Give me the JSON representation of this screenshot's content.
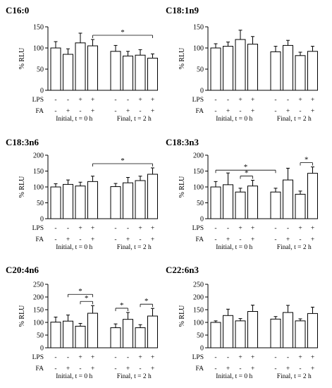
{
  "figure": {
    "ylabel": "% RLU",
    "row_labels": [
      "LPS",
      "FA"
    ],
    "lps_pattern": [
      "-",
      "-",
      "+",
      "+"
    ],
    "fa_pattern": [
      "-",
      "+",
      "-",
      "+"
    ],
    "groups": [
      "Initial, t = 0 h",
      "Final, t = 2 h"
    ]
  },
  "chart_data": [
    {
      "type": "bar",
      "title": "C16:0",
      "ylim": [
        0,
        150
      ],
      "yticks": [
        0,
        50,
        100,
        150
      ],
      "groups": [
        "Initial, t = 0 h",
        "Final, t = 2 h"
      ],
      "values": [
        [
          100,
          85,
          112,
          105
        ],
        [
          92,
          81,
          83,
          76
        ]
      ],
      "errors": [
        [
          15,
          13,
          23,
          15
        ],
        [
          14,
          11,
          13,
          10
        ]
      ],
      "significance": [
        {
          "a": [
            0,
            3
          ],
          "b": [
            1,
            3
          ],
          "label": "*"
        }
      ]
    },
    {
      "type": "bar",
      "title": "C18:1n9",
      "ylim": [
        0,
        150
      ],
      "yticks": [
        0,
        50,
        100,
        150
      ],
      "groups": [
        "Initial, t = 0 h",
        "Final, t = 2 h"
      ],
      "values": [
        [
          100,
          104,
          120,
          109
        ],
        [
          91,
          106,
          82,
          92
        ]
      ],
      "errors": [
        [
          10,
          10,
          22,
          18
        ],
        [
          13,
          12,
          8,
          12
        ]
      ],
      "significance": []
    },
    {
      "type": "bar",
      "title": "C18:3n6",
      "ylim": [
        0,
        200
      ],
      "yticks": [
        0,
        50,
        100,
        150,
        200
      ],
      "groups": [
        "Initial, t = 0 h",
        "Final, t = 2 h"
      ],
      "values": [
        [
          100,
          108,
          103,
          117
        ],
        [
          101,
          113,
          120,
          140
        ]
      ],
      "errors": [
        [
          10,
          14,
          12,
          17
        ],
        [
          10,
          17,
          14,
          20
        ]
      ],
      "significance": [
        {
          "a": [
            0,
            3
          ],
          "b": [
            1,
            3
          ],
          "label": "*"
        }
      ]
    },
    {
      "type": "bar",
      "title": "C18:3n3",
      "ylim": [
        0,
        200
      ],
      "yticks": [
        0,
        50,
        100,
        150,
        200
      ],
      "groups": [
        "Initial, t = 0 h",
        "Final, t = 2 h"
      ],
      "values": [
        [
          100,
          107,
          84,
          103
        ],
        [
          84,
          122,
          77,
          143
        ]
      ],
      "errors": [
        [
          17,
          37,
          12,
          18
        ],
        [
          12,
          37,
          10,
          20
        ]
      ],
      "significance": [
        {
          "a": [
            0,
            0
          ],
          "b": [
            1,
            0
          ],
          "label": "*"
        },
        {
          "a": [
            0,
            2
          ],
          "b": [
            0,
            3
          ],
          "label": "*"
        },
        {
          "a": [
            1,
            2
          ],
          "b": [
            1,
            3
          ],
          "label": "*"
        }
      ]
    },
    {
      "type": "bar",
      "title": "C20:4n6",
      "ylim": [
        0,
        250
      ],
      "yticks": [
        0,
        50,
        100,
        150,
        200,
        250
      ],
      "groups": [
        "Initial, t = 0 h",
        "Final, t = 2 h"
      ],
      "values": [
        [
          101,
          105,
          85,
          136
        ],
        [
          79,
          112,
          79,
          125
        ]
      ],
      "errors": [
        [
          20,
          24,
          11,
          30
        ],
        [
          15,
          27,
          12,
          30
        ]
      ],
      "significance": [
        {
          "a": [
            0,
            1
          ],
          "b": [
            0,
            3
          ],
          "label": "*"
        },
        {
          "a": [
            0,
            2
          ],
          "b": [
            0,
            3
          ],
          "label": "*"
        },
        {
          "a": [
            1,
            0
          ],
          "b": [
            1,
            1
          ],
          "label": "*"
        },
        {
          "a": [
            1,
            2
          ],
          "b": [
            1,
            3
          ],
          "label": "*"
        }
      ]
    },
    {
      "type": "bar",
      "title": "C22:6n3",
      "ylim": [
        0,
        250
      ],
      "yticks": [
        0,
        50,
        100,
        150,
        200,
        250
      ],
      "groups": [
        "Initial, t = 0 h",
        "Final, t = 2 h"
      ],
      "values": [
        [
          100,
          127,
          106,
          143
        ],
        [
          113,
          139,
          106,
          135
        ]
      ],
      "errors": [
        [
          6,
          25,
          9,
          25
        ],
        [
          10,
          28,
          8,
          25
        ]
      ],
      "significance": []
    }
  ]
}
